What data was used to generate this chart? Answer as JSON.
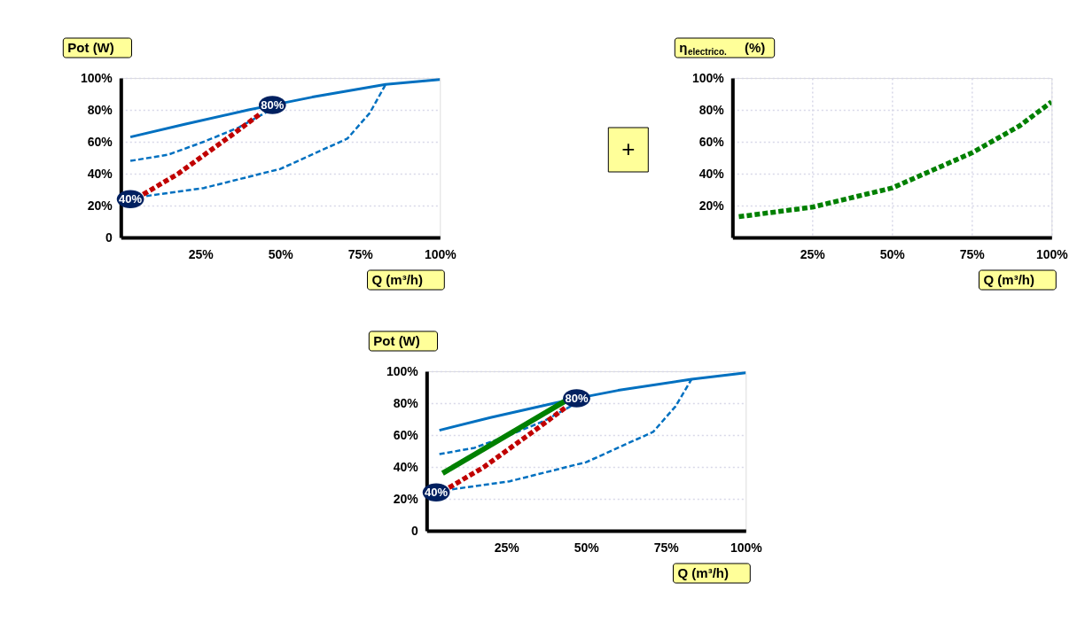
{
  "chart_data": [
    {
      "type": "line",
      "xlabel": "Q (m³/h)",
      "ylabel": "Pot (W)",
      "xlim": [
        0,
        100
      ],
      "ylim": [
        0,
        100
      ],
      "grid": "y",
      "xticks": [
        {
          "value": 25,
          "label": "25%"
        },
        {
          "value": 50,
          "label": "50%"
        },
        {
          "value": 75,
          "label": "75%"
        },
        {
          "value": 100,
          "label": "100%"
        }
      ],
      "yticks": [
        0,
        {
          "value": 20,
          "label": "20%"
        },
        {
          "value": 40,
          "label": "40%"
        },
        {
          "value": 60,
          "label": "60%"
        },
        {
          "value": 80,
          "label": "80%"
        },
        {
          "value": 100,
          "label": "100%"
        }
      ],
      "series": [
        {
          "color": "#0070c0",
          "line_style": "solid",
          "x": [
            3,
            20,
            40,
            47.5,
            60,
            83,
            100
          ],
          "values": [
            63,
            71,
            80,
            83,
            88,
            96,
            99
          ]
        },
        {
          "color": "#0070c0",
          "line_style": "dashed",
          "x": [
            3,
            15,
            26,
            37,
            46
          ],
          "values": [
            48,
            52,
            60,
            69,
            79
          ]
        },
        {
          "color": "#0070c0",
          "line_style": "dashed",
          "x": [
            8,
            26,
            50,
            71,
            78,
            83
          ],
          "values": [
            26,
            31,
            43,
            62,
            78,
            96
          ]
        },
        {
          "color": "#c00000",
          "line_style": "dashed",
          "x": [
            7,
            18,
            27,
            36,
            44
          ],
          "values": [
            27,
            40,
            53,
            66,
            78
          ]
        }
      ],
      "annotations": [
        {
          "text": "80%",
          "x": 47.5,
          "y": 83
        },
        {
          "text": "40%",
          "x": 3,
          "y": 24
        }
      ]
    },
    {
      "type": "line",
      "xlabel": "Q (m³/h)",
      "ylabel": "η$_{electrico.}$(%)",
      "xlim": [
        0,
        100
      ],
      "ylim": [
        0,
        100
      ],
      "grid": true,
      "xticks": [
        {
          "value": 25,
          "label": "25%"
        },
        {
          "value": 50,
          "label": "50%"
        },
        {
          "value": 75,
          "label": "75%"
        },
        {
          "value": 100,
          "label": "100%"
        }
      ],
      "yticks": [
        {
          "value": 20,
          "label": "20%"
        },
        {
          "value": 40,
          "label": "40%"
        },
        {
          "value": 60,
          "label": "60%"
        },
        {
          "value": 80,
          "label": "80%"
        },
        {
          "value": 100,
          "label": "100%"
        }
      ],
      "series": [
        {
          "color": "#008000",
          "line_style": "dashed",
          "x": [
            2,
            25,
            50,
            75,
            90,
            100
          ],
          "values": [
            13,
            19,
            31,
            53,
            70,
            85
          ]
        }
      ],
      "annotations": [
        "+"
      ]
    },
    {
      "type": "line",
      "xlabel": "Q (m³/h)",
      "ylabel": "Pot (W)",
      "xlim": [
        0,
        100
      ],
      "ylim": [
        0,
        100
      ],
      "grid": "y",
      "xticks": [
        {
          "value": 25,
          "label": "25%"
        },
        {
          "value": 50,
          "label": "50%"
        },
        {
          "value": 75,
          "label": "75%"
        },
        {
          "value": 100,
          "label": "100%"
        }
      ],
      "yticks": [
        0,
        {
          "value": 20,
          "label": "20%"
        },
        {
          "value": 40,
          "label": "40%"
        },
        {
          "value": 60,
          "label": "60%"
        },
        {
          "value": 80,
          "label": "80%"
        },
        {
          "value": 100,
          "label": "100%"
        }
      ],
      "series": [
        {
          "color": "#0070c0",
          "line_style": "solid",
          "x": [
            4,
            20,
            40,
            47,
            60,
            83,
            100
          ],
          "values": [
            63,
            71,
            80,
            83,
            88,
            95,
            99
          ]
        },
        {
          "color": "#0070c0",
          "line_style": "dashed",
          "x": [
            4,
            15,
            26,
            37,
            46
          ],
          "values": [
            48,
            52,
            60,
            69,
            79
          ]
        },
        {
          "color": "#0070c0",
          "line_style": "dashed",
          "x": [
            8,
            26,
            50,
            71,
            78,
            83
          ],
          "values": [
            26,
            31,
            43,
            62,
            78,
            95
          ]
        },
        {
          "color": "#008000",
          "line_style": "solid",
          "x": [
            5,
            44
          ],
          "values": [
            36,
            82
          ]
        },
        {
          "color": "#c00000",
          "line_style": "dashed",
          "x": [
            7,
            18,
            27,
            36,
            44
          ],
          "values": [
            27,
            40,
            53,
            66,
            78
          ]
        }
      ],
      "annotations": [
        {
          "text": "80%",
          "x": 47,
          "y": 83
        },
        {
          "text": "40%",
          "x": 3,
          "y": 24
        }
      ]
    }
  ]
}
